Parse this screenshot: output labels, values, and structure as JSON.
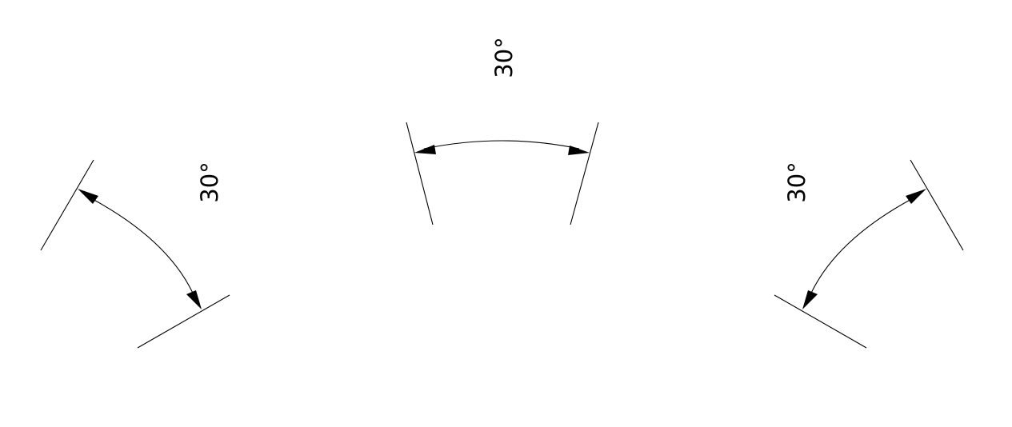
{
  "diagram": {
    "line_color": "#000000",
    "background_color": "#ffffff",
    "dimensions": [
      {
        "id": "left",
        "label": "30°"
      },
      {
        "id": "center",
        "label": "30°"
      },
      {
        "id": "right",
        "label": "30°"
      }
    ]
  }
}
